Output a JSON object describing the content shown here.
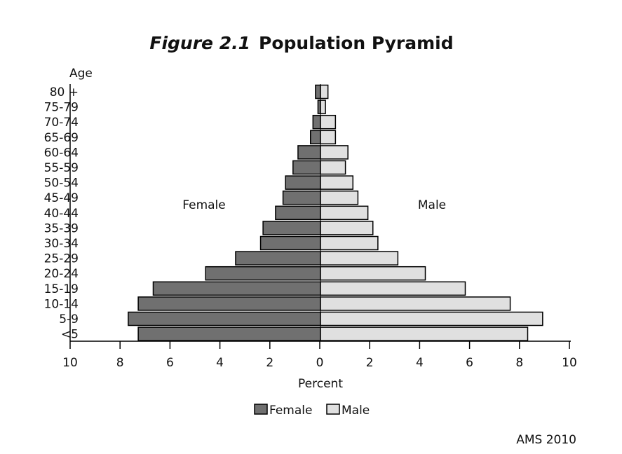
{
  "chart_data": {
    "type": "bar",
    "orientation": "horizontal-pyramid",
    "title_prefix": "Figure 2.1",
    "title": "Population Pyramid",
    "ylabel": "Age",
    "xlabel": "Percent",
    "categories": [
      "80 +",
      "75-79",
      "70-74",
      "65-69",
      "60-64",
      "55-59",
      "50-54",
      "45-49",
      "40-44",
      "35-39",
      "30-34",
      "25-29",
      "20-24",
      "15-19",
      "10-14",
      "5-9",
      "<5"
    ],
    "series": [
      {
        "name": "Female",
        "color": "#707070",
        "values": [
          0.2,
          0.1,
          0.3,
          0.4,
          0.9,
          1.1,
          1.4,
          1.5,
          1.8,
          2.3,
          2.4,
          3.4,
          4.6,
          6.7,
          7.3,
          7.7,
          7.3
        ]
      },
      {
        "name": "Male",
        "color": "#e0e0e0",
        "values": [
          0.3,
          0.2,
          0.6,
          0.6,
          1.1,
          1.0,
          1.3,
          1.5,
          1.9,
          2.1,
          2.3,
          3.1,
          4.2,
          5.8,
          7.6,
          8.9,
          8.3
        ]
      }
    ],
    "xlim": [
      -10,
      10
    ],
    "xticks": [
      10,
      8,
      6,
      4,
      2,
      0,
      2,
      4,
      6,
      8,
      10
    ],
    "annotations": [
      "Female",
      "Male"
    ],
    "legend": "bottom-center",
    "grid": false,
    "source": "AMS 2010"
  }
}
